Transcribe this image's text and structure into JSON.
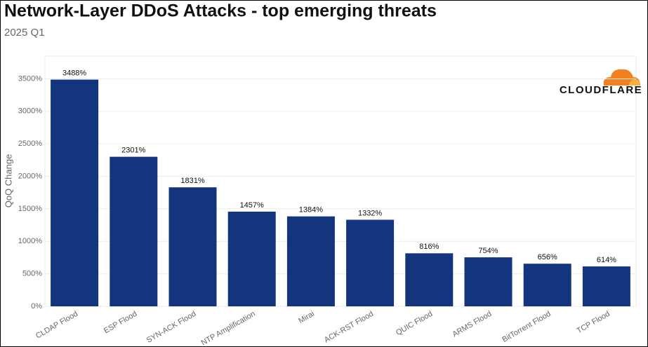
{
  "chart_data": {
    "type": "bar",
    "title": "Network-Layer DDoS Attacks - top emerging threats",
    "subtitle": "2025 Q1",
    "y_axis_label": "QoQ Change",
    "logo_text": "CLOUDFLARE",
    "categories": [
      "CLDAP Flood",
      "ESP Flood",
      "SYN-ACK Flood",
      "NTP Amplification",
      "Mirai",
      "ACK-RST Flood",
      "QUIC Flood",
      "ARMS Flood",
      "BitTorrent Flood",
      "TCP Flood"
    ],
    "values": [
      3488,
      2301,
      1831,
      1457,
      1384,
      1332,
      816,
      754,
      656,
      614
    ],
    "value_labels": [
      "3488%",
      "2301%",
      "1831%",
      "1457%",
      "1384%",
      "1332%",
      "816%",
      "754%",
      "656%",
      "614%"
    ],
    "color": "#12357d",
    "ylim": [
      0,
      3850
    ],
    "yticks": [
      {
        "value": 0,
        "label": "0%"
      },
      {
        "value": 500,
        "label": "500%"
      },
      {
        "value": 1000,
        "label": "1000%"
      },
      {
        "value": 1500,
        "label": "1500%"
      },
      {
        "value": 2000,
        "label": "2000%"
      },
      {
        "value": 2500,
        "label": "2500%"
      },
      {
        "value": 3000,
        "label": "3000%"
      },
      {
        "value": 3500,
        "label": "3500%"
      }
    ],
    "grid": true
  }
}
